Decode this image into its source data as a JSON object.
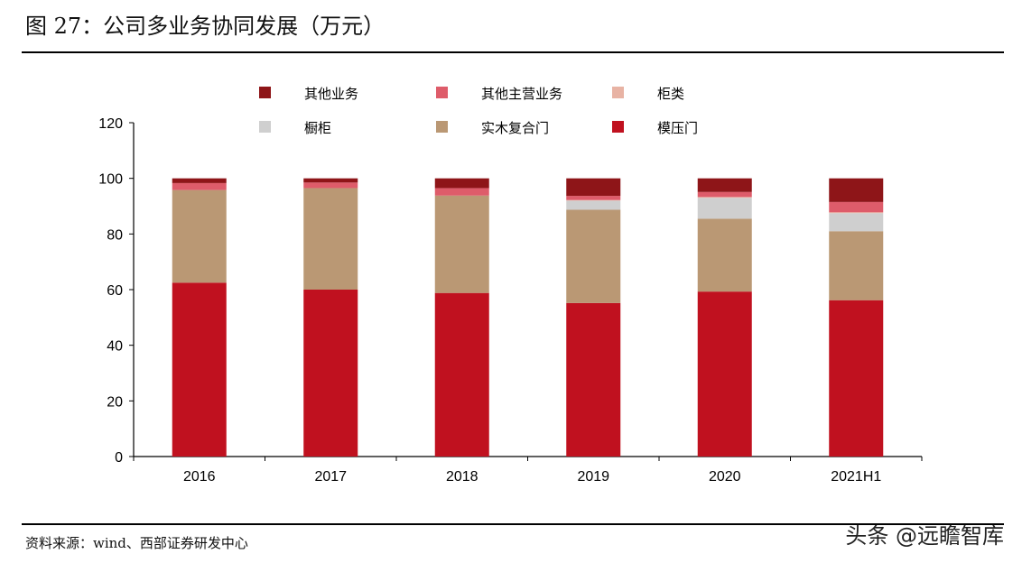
{
  "header": {
    "title": "图 27：公司多业务协同发展（万元）"
  },
  "footer": {
    "source": "资料来源：wind、西部证券研发中心",
    "watermark": "头条 @远瞻智库"
  },
  "chart_data": {
    "type": "bar",
    "stacked": true,
    "categories": [
      "2016",
      "2017",
      "2018",
      "2019",
      "2020",
      "2021H1"
    ],
    "ylim": [
      0,
      120
    ],
    "yticks": [
      "0",
      "20",
      "40",
      "60",
      "80",
      "100",
      "120"
    ],
    "ytick_values": [
      0,
      20,
      40,
      60,
      80,
      100,
      120
    ],
    "grid": false,
    "legend_position": "top",
    "series": [
      {
        "name": "模压门",
        "color": "#C0111F",
        "values": [
          62.5,
          60.0,
          58.8,
          55.2,
          59.3,
          56.2
        ]
      },
      {
        "name": "实木复合门",
        "color": "#BA9874",
        "values": [
          33.3,
          36.5,
          35.0,
          33.5,
          26.2,
          24.8
        ]
      },
      {
        "name": "橱柜",
        "color": "#CFCFCF",
        "values": [
          0.0,
          0.0,
          0.0,
          3.3,
          7.5,
          6.5
        ]
      },
      {
        "name": "柜类",
        "color": "#E8B3A4",
        "values": [
          0.0,
          0.0,
          0.0,
          0.2,
          0.3,
          0.3
        ]
      },
      {
        "name": "其他主营业务",
        "color": "#DE5C6A",
        "values": [
          2.5,
          2.0,
          2.7,
          1.5,
          1.8,
          3.7
        ]
      },
      {
        "name": "其他业务",
        "color": "#8E1518",
        "values": [
          1.7,
          1.5,
          3.5,
          6.3,
          4.9,
          8.5
        ]
      }
    ]
  }
}
